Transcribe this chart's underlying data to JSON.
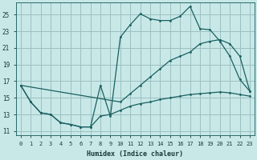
{
  "xlabel": "Humidex (Indice chaleur)",
  "bg_color": "#c8e8e8",
  "grid_color": "#9bbfbf",
  "line_color": "#1a6060",
  "xlim": [
    -0.5,
    23.5
  ],
  "ylim": [
    10.5,
    26.5
  ],
  "ytick_vals": [
    11,
    13,
    15,
    17,
    19,
    21,
    23,
    25
  ],
  "xtick_vals": [
    0,
    1,
    2,
    3,
    4,
    5,
    6,
    7,
    8,
    9,
    10,
    11,
    12,
    13,
    14,
    15,
    16,
    17,
    18,
    19,
    20,
    21,
    22,
    23
  ],
  "curve1_x": [
    0,
    1,
    2,
    3,
    4,
    5,
    6,
    7,
    8,
    9,
    10,
    11,
    12,
    13,
    14,
    15,
    16,
    17,
    18,
    19,
    20,
    21,
    22,
    23
  ],
  "curve1_y": [
    16.5,
    14.5,
    13.2,
    13.0,
    12.0,
    11.8,
    11.5,
    11.5,
    12.8,
    13.0,
    13.5,
    14.0,
    14.3,
    14.5,
    14.8,
    15.0,
    15.2,
    15.4,
    15.5,
    15.6,
    15.7,
    15.6,
    15.4,
    15.2
  ],
  "curve2_x": [
    0,
    1,
    2,
    3,
    4,
    5,
    6,
    7,
    8,
    9,
    10,
    11,
    12,
    13,
    14,
    15,
    16,
    17,
    18,
    19,
    20,
    21,
    22,
    23
  ],
  "curve2_y": [
    16.5,
    14.5,
    13.2,
    13.0,
    12.0,
    11.8,
    11.5,
    11.5,
    16.5,
    12.8,
    22.3,
    23.8,
    25.1,
    24.5,
    24.3,
    24.3,
    24.8,
    26.0,
    23.3,
    23.2,
    21.8,
    20.0,
    17.2,
    15.8
  ],
  "curve3_x": [
    0,
    10,
    11,
    12,
    13,
    14,
    15,
    16,
    17,
    18,
    19,
    20,
    21,
    22,
    23
  ],
  "curve3_y": [
    16.5,
    14.5,
    15.5,
    16.5,
    17.5,
    18.5,
    19.5,
    20.0,
    20.5,
    21.5,
    21.8,
    22.0,
    21.5,
    20.0,
    15.8
  ]
}
